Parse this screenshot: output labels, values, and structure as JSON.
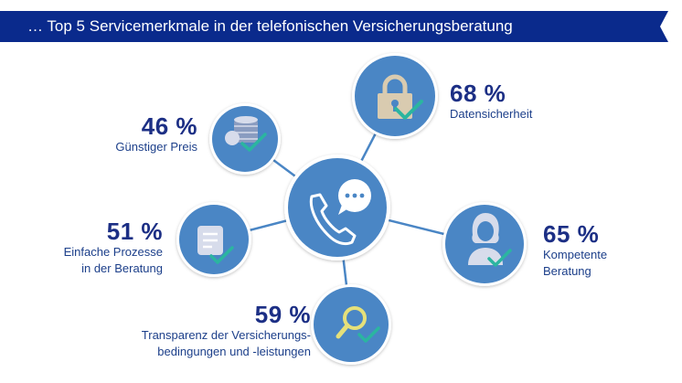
{
  "header": {
    "title": "… Top 5 Servicemerkmale in der telefonischen Versicherungsberatung"
  },
  "center": {
    "icon": "phone-chat-icon"
  },
  "items": [
    {
      "percent": "46 %",
      "desc_line1": "Günstiger Preis",
      "icon": "coins-check-icon"
    },
    {
      "percent": "68 %",
      "desc_line1": "Datensicherheit",
      "icon": "padlock-check-icon"
    },
    {
      "percent": "51 %",
      "desc_line1": "Einfache Prozesse",
      "desc_line2": "in der Beratung",
      "icon": "document-check-icon"
    },
    {
      "percent": "65 %",
      "desc_line1": "Kompetente",
      "desc_line2": "Beratung",
      "icon": "person-check-icon"
    },
    {
      "percent": "59 %",
      "desc_line1": "Transparenz der Versicherungs-",
      "desc_line2": "bedingungen und -leistungen",
      "icon": "magnifier-check-icon"
    }
  ],
  "colors": {
    "banner": "#0a2a8c",
    "circle": "#4a86c5",
    "circle_ring": "#ffffff",
    "connector": "#4a86c5",
    "check": "#2bb5a0",
    "text_dark": "#1c2f85"
  }
}
